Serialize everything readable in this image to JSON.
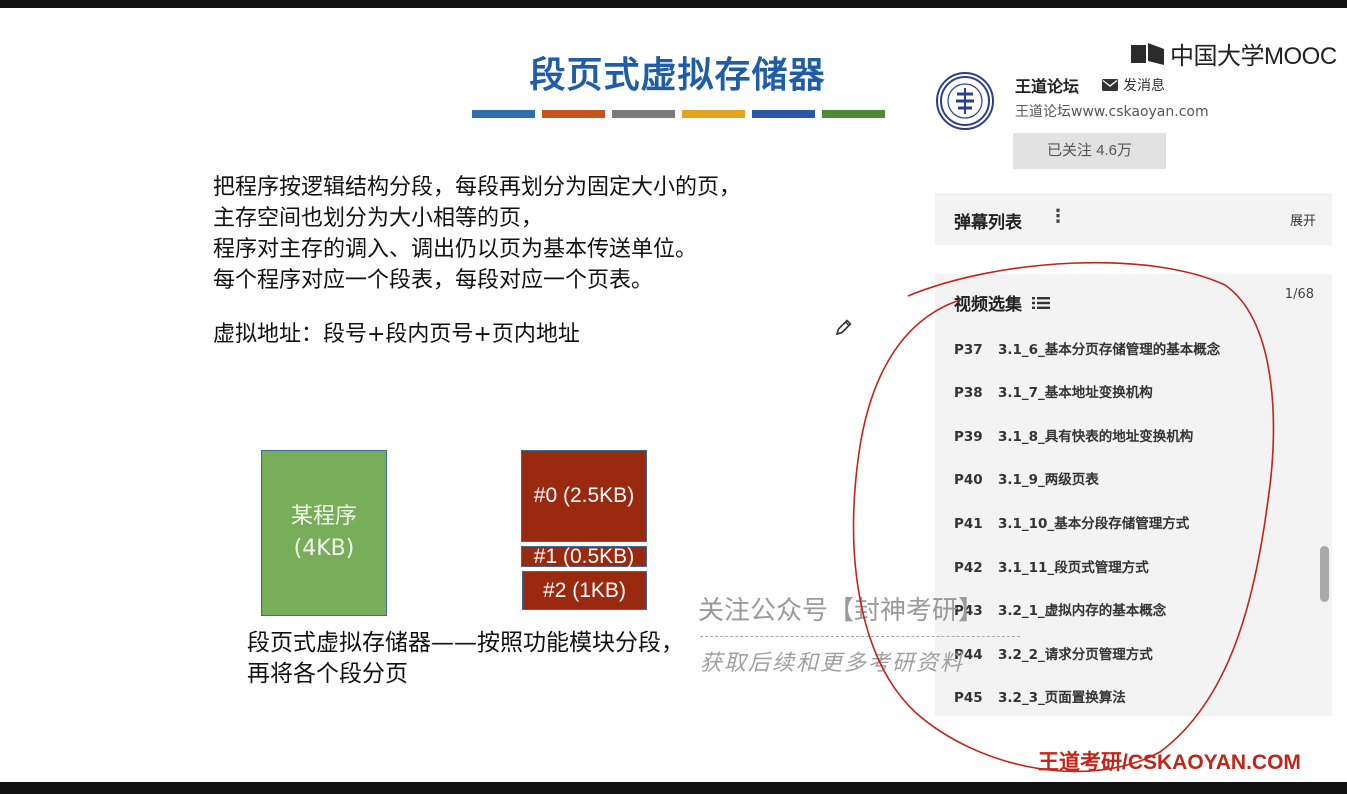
{
  "slide": {
    "title": "段页式虚拟存储器",
    "title_stripe_colors": [
      "#2f6fb0",
      "#c8541d",
      "#7b7b7b",
      "#e2a321",
      "#2a58a6",
      "#4d8a35"
    ],
    "lines": [
      "把程序按逻辑结构分段，每段再划分为固定大小的页，",
      "主存空间也划分为大小相等的页，",
      "程序对主存的调入、调出仍以页为基本传送单位。",
      "每个程序对应一个段表，每段对应一个页表。"
    ],
    "virtual_address": "虚拟地址：段号+段内页号+页内地址",
    "program_block": {
      "name": "某程序",
      "size": "(4KB)"
    },
    "segments": [
      {
        "label": "#0 (2.5KB)"
      },
      {
        "label": "#1 (0.5KB)"
      },
      {
        "label": "#2 (1KB)"
      }
    ],
    "caption": "段页式虚拟存储器——按照功能模块分段，再将各个段分页"
  },
  "watermark": {
    "line1": "关注公众号【封神考研】",
    "line2": "获取后续和更多考研资料"
  },
  "sidebar": {
    "logo_text": "中国大学MOOC",
    "uploader_name": "王道论坛",
    "send_message": "发消息",
    "uploader_site": "王道论坛www.cskaoyan.com",
    "follow_label": "已关注 4.6万",
    "danmu_title": "弹幕列表",
    "danmu_expand": "展开",
    "playlist_title": "视频选集",
    "playlist_count": "1/68",
    "videos": [
      {
        "p": "P37",
        "title": "3.1_6_基本分页存储管理的基本概念"
      },
      {
        "p": "P38",
        "title": "3.1_7_基本地址变换机构"
      },
      {
        "p": "P39",
        "title": "3.1_8_具有快表的地址变换机构"
      },
      {
        "p": "P40",
        "title": "3.1_9_两级页表"
      },
      {
        "p": "P41",
        "title": "3.1_10_基本分段存储管理方式"
      },
      {
        "p": "P42",
        "title": "3.1_11_段页式管理方式"
      },
      {
        "p": "P43",
        "title": "3.2_1_虚拟内存的基本概念"
      },
      {
        "p": "P44",
        "title": "3.2_2_请求分页管理方式"
      },
      {
        "p": "P45",
        "title": "3.2_3_页面置换算法"
      }
    ]
  },
  "brand": "王道考研/CSKAOYAN.COM",
  "colors": {
    "title": "#1f5da6",
    "program_block": "#78ad59",
    "segment": "#9a2a0f",
    "brand": "#c0251a",
    "annotation_ink": "#c0251a"
  }
}
